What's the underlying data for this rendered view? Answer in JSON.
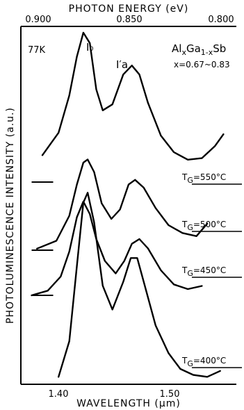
{
  "chart_data": {
    "type": "line",
    "title": "",
    "top_axis_label": "PHOTON ENERGY (eV)",
    "top_ticks": [
      "0.900",
      "0.850",
      "0.800"
    ],
    "xlabel": "WAVELENGTH (µm)",
    "ylabel": "PHOTOLUMINESCENCE INTENSITY (a.u.)",
    "x_ticks": [
      "1.40",
      "1.50"
    ],
    "xlim": [
      1.36,
      1.56
    ],
    "temperature_label": "77K",
    "peak_labels": [
      "I₀",
      "I′a"
    ],
    "material": {
      "text": "AlxGa1-xSb",
      "composition": "x=0.67~0.83"
    },
    "series": [
      {
        "name": "TG=550°C",
        "tg_prefix": "T",
        "tg_sub": "G",
        "tg_value": "=550°C",
        "x": [
          1.38,
          1.395,
          1.405,
          1.412,
          1.418,
          1.424,
          1.43,
          1.436,
          1.445,
          1.455,
          1.463,
          1.47,
          1.478,
          1.49,
          1.502,
          1.515,
          1.528,
          1.54,
          1.548
        ],
        "y": [
          0.18,
          0.33,
          0.58,
          0.84,
          1.0,
          0.93,
          0.62,
          0.48,
          0.52,
          0.72,
          0.78,
          0.72,
          0.53,
          0.31,
          0.2,
          0.15,
          0.16,
          0.24,
          0.32
        ],
        "baseline": [
          1.37,
          1.39
        ]
      },
      {
        "name": "TG=500°C",
        "tg_prefix": "T",
        "tg_sub": "G",
        "tg_value": "=500°C",
        "x": [
          1.375,
          1.393,
          1.405,
          1.412,
          1.418,
          1.422,
          1.428,
          1.435,
          1.444,
          1.452,
          1.46,
          1.466,
          1.474,
          1.485,
          1.497,
          1.51,
          1.523,
          1.533
        ],
        "y": [
          0.01,
          0.06,
          0.22,
          0.42,
          0.56,
          0.58,
          0.5,
          0.3,
          0.2,
          0.26,
          0.42,
          0.45,
          0.4,
          0.27,
          0.16,
          0.11,
          0.09,
          0.17
        ],
        "baseline": [
          1.37,
          1.39
        ]
      },
      {
        "name": "TG=450°C",
        "tg_prefix": "T",
        "tg_sub": "G",
        "tg_value": "=450°C",
        "x": [
          1.37,
          1.385,
          1.397,
          1.405,
          1.412,
          1.418,
          1.424,
          1.43,
          1.438,
          1.448,
          1.456,
          1.463,
          1.47,
          1.478,
          1.49,
          1.502,
          1.515,
          1.528
        ],
        "y": [
          0.0,
          0.03,
          0.12,
          0.28,
          0.5,
          0.6,
          0.52,
          0.36,
          0.22,
          0.14,
          0.22,
          0.33,
          0.36,
          0.3,
          0.16,
          0.07,
          0.04,
          0.06
        ],
        "baseline": [
          1.37,
          1.39
        ]
      },
      {
        "name": "TG=400°C",
        "tg_prefix": "T",
        "tg_sub": "G",
        "tg_value": "=400°C",
        "x": [
          1.395,
          1.405,
          1.412,
          1.418,
          1.422,
          1.428,
          1.436,
          1.445,
          1.455,
          1.462,
          1.468,
          1.475,
          1.485,
          1.497,
          1.508,
          1.52,
          1.533,
          1.545
        ],
        "y": [
          0.02,
          0.2,
          0.58,
          0.9,
          0.95,
          0.8,
          0.48,
          0.36,
          0.5,
          0.62,
          0.62,
          0.48,
          0.28,
          0.14,
          0.06,
          0.03,
          0.02,
          0.05
        ],
        "baseline": null
      }
    ]
  }
}
